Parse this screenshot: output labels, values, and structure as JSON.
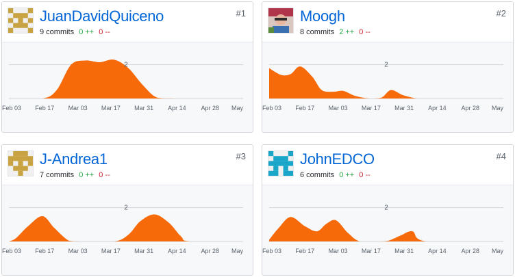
{
  "contributors": [
    {
      "rank": "#1",
      "username": "JuanDavidQuiceno",
      "commits_text": "9 commits",
      "additions_text": "0 ++",
      "deletions_text": "0 --",
      "avatar": "identicon-mustard",
      "avatar_color": "#c9a341"
    },
    {
      "rank": "#2",
      "username": "Moogh",
      "commits_text": "8 commits",
      "additions_text": "2 ++",
      "deletions_text": "0 --",
      "avatar": "photo-avatar",
      "avatar_color": "#b0344a"
    },
    {
      "rank": "#3",
      "username": "J-Andrea1",
      "commits_text": "7 commits",
      "additions_text": "0 ++",
      "deletions_text": "0 --",
      "avatar": "identicon-mustard",
      "avatar_color": "#c9a341"
    },
    {
      "rank": "#4",
      "username": "JohnEDCO",
      "commits_text": "6 commits",
      "additions_text": "0 ++",
      "deletions_text": "0 --",
      "avatar": "identicon-teal",
      "avatar_color": "#1aa6c9"
    }
  ],
  "chart_data": [
    {
      "type": "area",
      "title": "JuanDavidQuiceno",
      "x_tick_labels": [
        "Feb 03",
        "Feb 17",
        "Mar 03",
        "Mar 17",
        "Mar 31",
        "Apr 14",
        "Apr 28",
        "May"
      ],
      "reference_line": {
        "value": 2,
        "label": "2"
      },
      "ylim": [
        0,
        3
      ],
      "series": [
        {
          "name": "commits",
          "color": "#f66a0a",
          "x_days": [
            0,
            14,
            20,
            26,
            32,
            38,
            44,
            50,
            56,
            62,
            70,
            98
          ],
          "values": [
            0,
            0,
            0.5,
            2.0,
            2.25,
            2.15,
            2.3,
            1.8,
            0.8,
            0.05,
            0,
            0
          ]
        }
      ]
    },
    {
      "type": "area",
      "title": "Moogh",
      "x_tick_labels": [
        "Feb 03",
        "Feb 17",
        "Mar 03",
        "Mar 17",
        "Mar 31",
        "Apr 14",
        "Apr 28",
        "May"
      ],
      "reference_line": {
        "value": 2,
        "label": "2"
      },
      "ylim": [
        0,
        3
      ],
      "series": [
        {
          "name": "commits",
          "color": "#f66a0a",
          "x_days": [
            0,
            5,
            9,
            13,
            18,
            22,
            27,
            31,
            36,
            42,
            47,
            51,
            56,
            62,
            67,
            98
          ],
          "values": [
            1.8,
            1.4,
            1.45,
            1.9,
            1.3,
            0.5,
            0.4,
            0.45,
            0.15,
            0,
            0.05,
            0.5,
            0.2,
            0,
            0,
            0
          ]
        }
      ]
    },
    {
      "type": "area",
      "title": "J-Andrea1",
      "x_tick_labels": [
        "Feb 03",
        "Feb 17",
        "Mar 03",
        "Mar 17",
        "Mar 31",
        "Apr 14",
        "Apr 28",
        "May"
      ],
      "reference_line": {
        "value": 2,
        "label": "2"
      },
      "ylim": [
        0,
        3
      ],
      "series": [
        {
          "name": "commits",
          "color": "#f66a0a",
          "x_days": [
            0,
            3,
            8,
            14,
            19,
            25,
            30,
            44,
            50,
            55,
            61,
            67,
            72,
            76,
            98
          ],
          "values": [
            0,
            0.2,
            0.9,
            1.5,
            0.8,
            0.05,
            0,
            0,
            0.4,
            1.2,
            1.6,
            1.1,
            0.3,
            0,
            0
          ]
        }
      ]
    },
    {
      "type": "area",
      "title": "JohnEDCO",
      "x_tick_labels": [
        "Feb 03",
        "Feb 17",
        "Mar 03",
        "Mar 17",
        "Mar 31",
        "Apr 14",
        "Apr 28",
        "May"
      ],
      "reference_line": {
        "value": 2,
        "label": "2"
      },
      "ylim": [
        0,
        3
      ],
      "series": [
        {
          "name": "commits",
          "color": "#f66a0a",
          "x_days": [
            0,
            4,
            9,
            15,
            20,
            24,
            28,
            33,
            38,
            46,
            50,
            55,
            60,
            66,
            98
          ],
          "values": [
            0.1,
            0.8,
            1.45,
            0.9,
            0.6,
            1.05,
            1.25,
            0.5,
            0,
            0,
            0.05,
            0.35,
            0.6,
            0,
            0
          ]
        }
      ]
    }
  ]
}
